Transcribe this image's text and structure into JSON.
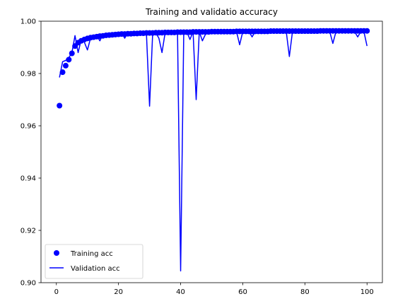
{
  "chart_data": {
    "type": "line",
    "title": "Training and validatio accuracy",
    "xlabel": "",
    "ylabel": "",
    "xlim": [
      -4.95,
      104.95
    ],
    "ylim": [
      0.9,
      1.0
    ],
    "xticks": [
      0,
      20,
      40,
      60,
      80,
      100
    ],
    "yticks": [
      0.9,
      0.92,
      0.94,
      0.96,
      0.98,
      1.0
    ],
    "xtick_labels": [
      "0",
      "20",
      "40",
      "60",
      "80",
      "100"
    ],
    "ytick_labels": [
      "0.90",
      "0.92",
      "0.94",
      "0.96",
      "0.98",
      "1.00"
    ],
    "grid": false,
    "legend": {
      "placement": "lower-left",
      "entries": [
        "Training acc",
        "Validation acc"
      ]
    },
    "series": [
      {
        "name": "Training acc",
        "style": "markers",
        "color": "#0000ff",
        "x": [
          1,
          2,
          3,
          4,
          5,
          6,
          7,
          8,
          9,
          10,
          11,
          12,
          13,
          14,
          15,
          16,
          17,
          18,
          19,
          20,
          21,
          22,
          23,
          24,
          25,
          26,
          27,
          28,
          29,
          30,
          31,
          32,
          33,
          34,
          35,
          36,
          37,
          38,
          39,
          40,
          41,
          42,
          43,
          44,
          45,
          46,
          47,
          48,
          49,
          50,
          51,
          52,
          53,
          54,
          55,
          56,
          57,
          58,
          59,
          60,
          61,
          62,
          63,
          64,
          65,
          66,
          67,
          68,
          69,
          70,
          71,
          72,
          73,
          74,
          75,
          76,
          77,
          78,
          79,
          80,
          81,
          82,
          83,
          84,
          85,
          86,
          87,
          88,
          89,
          90,
          91,
          92,
          93,
          94,
          95,
          96,
          97,
          98,
          99,
          100
        ],
        "values": [
          0.9677,
          0.9805,
          0.983,
          0.9853,
          0.9877,
          0.9905,
          0.9918,
          0.9925,
          0.993,
          0.9934,
          0.9937,
          0.9939,
          0.9941,
          0.9943,
          0.9944,
          0.9946,
          0.9947,
          0.9948,
          0.9949,
          0.995,
          0.9951,
          0.9951,
          0.9952,
          0.9952,
          0.9953,
          0.9953,
          0.9954,
          0.9954,
          0.9955,
          0.9955,
          0.9955,
          0.9956,
          0.9956,
          0.9956,
          0.9957,
          0.9957,
          0.9957,
          0.9957,
          0.9958,
          0.9958,
          0.9958,
          0.9958,
          0.9958,
          0.9959,
          0.9959,
          0.9959,
          0.9959,
          0.9959,
          0.9959,
          0.996,
          0.996,
          0.996,
          0.996,
          0.996,
          0.996,
          0.996,
          0.996,
          0.9961,
          0.9961,
          0.9961,
          0.9961,
          0.9961,
          0.9961,
          0.9961,
          0.9961,
          0.9961,
          0.9961,
          0.9961,
          0.9962,
          0.9962,
          0.9962,
          0.9962,
          0.9962,
          0.9962,
          0.9962,
          0.9962,
          0.9962,
          0.9962,
          0.9962,
          0.9962,
          0.9962,
          0.9962,
          0.9962,
          0.9962,
          0.9963,
          0.9963,
          0.9963,
          0.9963,
          0.9963,
          0.9963,
          0.9963,
          0.9963,
          0.9963,
          0.9963,
          0.9963,
          0.9963,
          0.9963,
          0.9963,
          0.9963,
          0.9963
        ]
      },
      {
        "name": "Validation acc",
        "style": "line",
        "color": "#0000ff",
        "x": [
          1,
          2,
          3,
          4,
          5,
          6,
          7,
          8,
          9,
          10,
          11,
          12,
          13,
          14,
          15,
          16,
          17,
          18,
          19,
          20,
          21,
          22,
          23,
          24,
          25,
          26,
          27,
          28,
          29,
          30,
          31,
          32,
          33,
          34,
          35,
          36,
          37,
          38,
          39,
          40,
          41,
          42,
          43,
          44,
          45,
          46,
          47,
          48,
          49,
          50,
          51,
          52,
          53,
          54,
          55,
          56,
          57,
          58,
          59,
          60,
          61,
          62,
          63,
          64,
          65,
          66,
          67,
          68,
          69,
          70,
          71,
          72,
          73,
          74,
          75,
          76,
          77,
          78,
          79,
          80,
          81,
          82,
          83,
          84,
          85,
          86,
          87,
          88,
          89,
          90,
          91,
          92,
          93,
          94,
          95,
          96,
          97,
          98,
          99,
          100
        ],
        "values": [
          0.9785,
          0.9845,
          0.985,
          0.986,
          0.988,
          0.9945,
          0.988,
          0.993,
          0.992,
          0.989,
          0.9935,
          0.994,
          0.9945,
          0.9925,
          0.995,
          0.9945,
          0.995,
          0.9955,
          0.995,
          0.9955,
          0.9955,
          0.9935,
          0.9955,
          0.995,
          0.9955,
          0.9955,
          0.995,
          0.9955,
          0.995,
          0.9675,
          0.9955,
          0.9955,
          0.9935,
          0.988,
          0.9955,
          0.9955,
          0.9955,
          0.9955,
          0.9955,
          0.9045,
          0.9955,
          0.996,
          0.993,
          0.996,
          0.97,
          0.996,
          0.9925,
          0.995,
          0.9955,
          0.996,
          0.996,
          0.9965,
          0.996,
          0.9955,
          0.996,
          0.996,
          0.996,
          0.996,
          0.991,
          0.996,
          0.996,
          0.996,
          0.994,
          0.996,
          0.996,
          0.996,
          0.9955,
          0.996,
          0.996,
          0.996,
          0.996,
          0.996,
          0.996,
          0.996,
          0.9865,
          0.996,
          0.996,
          0.996,
          0.996,
          0.996,
          0.996,
          0.996,
          0.996,
          0.996,
          0.996,
          0.996,
          0.996,
          0.996,
          0.9915,
          0.996,
          0.996,
          0.996,
          0.996,
          0.996,
          0.996,
          0.996,
          0.994,
          0.996,
          0.996,
          0.9905
        ]
      }
    ]
  }
}
